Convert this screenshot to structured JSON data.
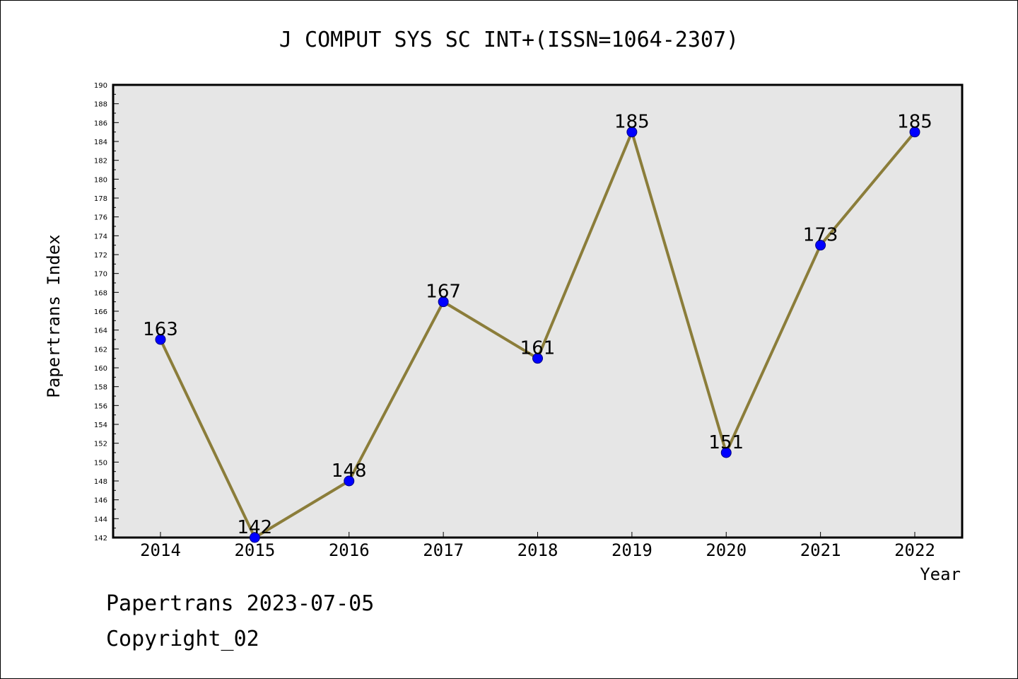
{
  "chart_data": {
    "type": "line",
    "title": "J COMPUT SYS SC INT+(ISSN=1064-2307)",
    "xlabel": "Year",
    "ylabel": "Papertrans Index",
    "x": [
      "2014",
      "2015",
      "2016",
      "2017",
      "2018",
      "2019",
      "2020",
      "2021",
      "2022"
    ],
    "series": [
      {
        "values": [
          163,
          142,
          148,
          167,
          161,
          185,
          151,
          173,
          185
        ]
      }
    ],
    "data_labels": [
      "163",
      "142",
      "148",
      "167",
      "161",
      "185",
      "151",
      "173",
      "185"
    ],
    "ylim": [
      142,
      190
    ],
    "yticks": [
      "142",
      "144",
      "146",
      "148",
      "150",
      "152",
      "154",
      "156",
      "158",
      "160",
      "162",
      "164",
      "166",
      "168",
      "170",
      "172",
      "174",
      "176",
      "178",
      "180",
      "182",
      "184",
      "186",
      "188",
      "190"
    ],
    "grid": false,
    "legend": "none",
    "colors": {
      "plot_background": "#e6e6e6",
      "line": "#8b7d3a",
      "marker": "#0000ff",
      "marker_edge": "#000080"
    }
  },
  "footer": {
    "line1": "Papertrans 2023-07-05",
    "line2": "Copyright_02"
  }
}
